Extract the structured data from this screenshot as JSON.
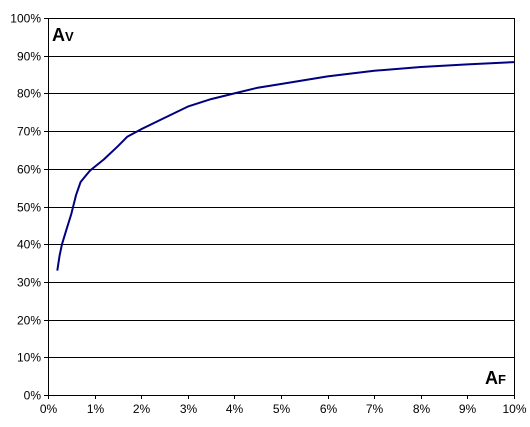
{
  "chart_data": {
    "type": "line",
    "title": "",
    "ylabel": {
      "main": "A",
      "sub": "V"
    },
    "xlabel": {
      "main": "A",
      "sub": "F"
    },
    "xlim": [
      0,
      0.1
    ],
    "ylim": [
      0,
      1.0
    ],
    "x_ticks": [
      "0%",
      "1%",
      "2%",
      "3%",
      "4%",
      "5%",
      "6%",
      "7%",
      "8%",
      "9%",
      "10%"
    ],
    "y_ticks": [
      "0%",
      "10%",
      "20%",
      "30%",
      "40%",
      "50%",
      "60%",
      "70%",
      "80%",
      "90%",
      "100%"
    ],
    "grid": "horizontal",
    "line_color": "#000080",
    "series": [
      {
        "x": [
          0.002,
          0.0025,
          0.003,
          0.004,
          0.005,
          0.006,
          0.007,
          0.008,
          0.009,
          0.01,
          0.012,
          0.015,
          0.017,
          0.02,
          0.025,
          0.03,
          0.035,
          0.04,
          0.045,
          0.05,
          0.06,
          0.07,
          0.08,
          0.09,
          0.1
        ],
        "y": [
          0.33,
          0.37,
          0.4,
          0.44,
          0.48,
          0.53,
          0.565,
          0.58,
          0.595,
          0.605,
          0.625,
          0.66,
          0.685,
          0.705,
          0.735,
          0.765,
          0.785,
          0.8,
          0.815,
          0.825,
          0.845,
          0.86,
          0.87,
          0.877,
          0.883
        ]
      }
    ]
  }
}
